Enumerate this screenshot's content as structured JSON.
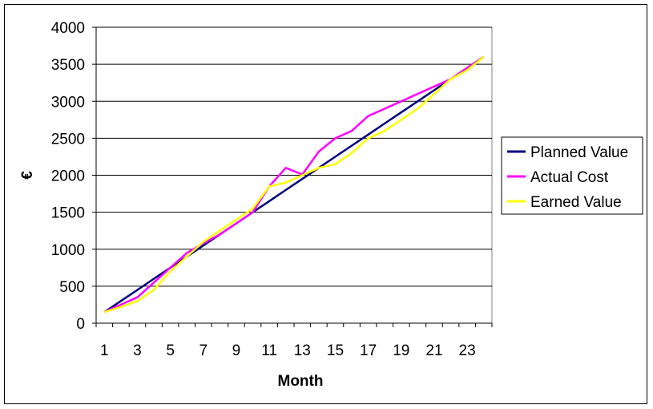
{
  "chart_data": {
    "type": "line",
    "xlabel": "Month",
    "ylabel": "€",
    "ylim": [
      0,
      4000
    ],
    "y_ticks": [
      0,
      500,
      1000,
      1500,
      2000,
      2500,
      3000,
      3500,
      4000
    ],
    "x": [
      1,
      2,
      3,
      4,
      5,
      6,
      7,
      8,
      9,
      10,
      11,
      12,
      13,
      14,
      15,
      16,
      17,
      18,
      19,
      20,
      21,
      22,
      23,
      24
    ],
    "x_tick_labels": [
      "1",
      "3",
      "5",
      "7",
      "9",
      "11",
      "13",
      "15",
      "17",
      "19",
      "21",
      "23"
    ],
    "grid": true,
    "legend_position": "right",
    "series": [
      {
        "name": "Planned Value",
        "color": "#000080",
        "values": [
          150,
          300,
          450,
          600,
          750,
          900,
          1050,
          1200,
          1350,
          1500,
          1650,
          1800,
          1950,
          2100,
          2250,
          2400,
          2550,
          2700,
          2850,
          3000,
          3150,
          3300,
          3450,
          3600
        ]
      },
      {
        "name": "Actual Cost",
        "color": "#FF00FF",
        "values": [
          150,
          250,
          350,
          550,
          750,
          950,
          1080,
          1200,
          1350,
          1500,
          1850,
          2100,
          2010,
          2320,
          2500,
          2600,
          2800,
          2900,
          3000,
          3100,
          3200,
          3300,
          3450,
          3600
        ]
      },
      {
        "name": "Earned Value",
        "color": "#FFFF00",
        "values": [
          150,
          220,
          300,
          450,
          700,
          900,
          1100,
          1250,
          1400,
          1550,
          1850,
          1900,
          2000,
          2100,
          2150,
          2300,
          2500,
          2600,
          2750,
          2900,
          3100,
          3300,
          3420,
          3600
        ]
      }
    ]
  }
}
